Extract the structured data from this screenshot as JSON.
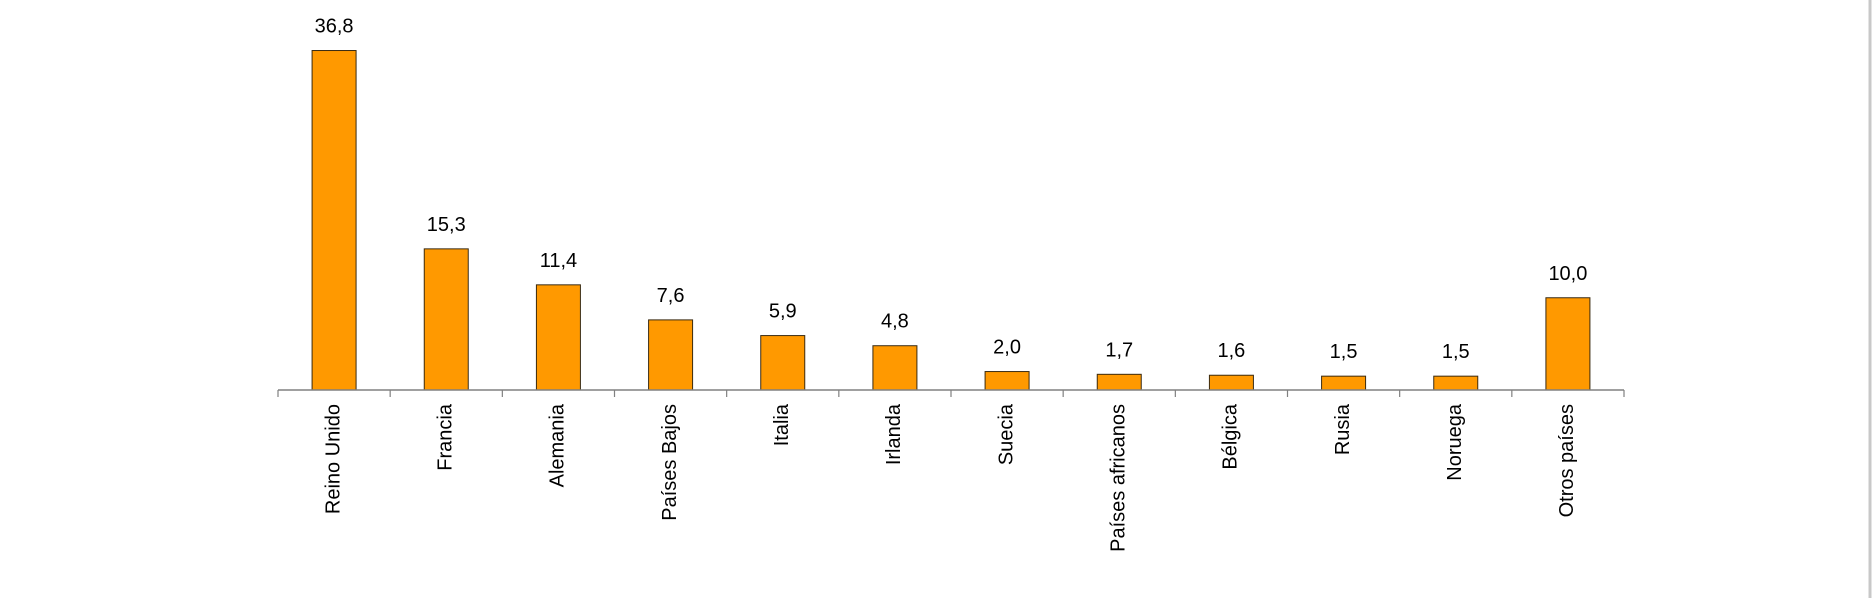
{
  "chart_data": {
    "type": "bar",
    "categories": [
      "Reino Unido",
      "Francia",
      "Alemania",
      "Países Bajos",
      "Italia",
      "Irlanda",
      "Suecia",
      "Países africanos",
      "Bélgica",
      "Rusia",
      "Noruega",
      "Otros países"
    ],
    "values": [
      36.8,
      15.3,
      11.4,
      7.6,
      5.9,
      4.8,
      2.0,
      1.7,
      1.6,
      1.5,
      1.5,
      10.0
    ],
    "value_labels": [
      "36,8",
      "15,3",
      "11,4",
      "7,6",
      "5,9",
      "4,8",
      "2,0",
      "1,7",
      "1,6",
      "1,5",
      "1,5",
      "10,0"
    ],
    "title": "",
    "xlabel": "",
    "ylabel": "",
    "ylim": [
      0,
      40
    ],
    "grid": false,
    "colors": {
      "bar": "#ff9900",
      "bar_edge": "#3a2a10",
      "axis": "#808080"
    }
  }
}
